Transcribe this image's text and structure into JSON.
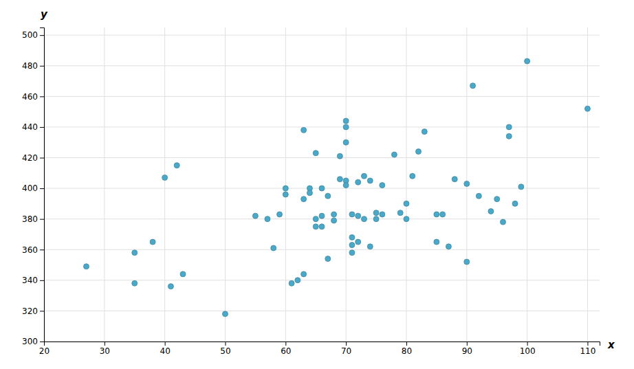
{
  "chart_data": {
    "type": "scatter",
    "xlabel": "x",
    "ylabel": "y",
    "x": [
      27,
      35,
      35,
      38,
      40,
      41,
      42,
      43,
      50,
      55,
      57,
      58,
      59,
      60,
      60,
      61,
      62,
      63,
      63,
      63,
      64,
      64,
      65,
      65,
      65,
      66,
      66,
      66,
      67,
      67,
      68,
      68,
      69,
      69,
      70,
      70,
      70,
      70,
      70,
      71,
      71,
      71,
      71,
      72,
      72,
      72,
      73,
      73,
      74,
      74,
      75,
      75,
      76,
      76,
      78,
      79,
      80,
      80,
      81,
      82,
      83,
      85,
      85,
      86,
      87,
      88,
      90,
      90,
      91,
      92,
      94,
      95,
      96,
      97,
      97,
      98,
      99,
      100,
      110
    ],
    "values": [
      349,
      358,
      338,
      365,
      407,
      336,
      415,
      344,
      318,
      382,
      380,
      361,
      383,
      400,
      396,
      338,
      340,
      344,
      438,
      393,
      400,
      397,
      375,
      380,
      423,
      382,
      375,
      400,
      354,
      395,
      383,
      379,
      421,
      406,
      444,
      440,
      430,
      405,
      402,
      363,
      358,
      368,
      383,
      382,
      365,
      404,
      408,
      380,
      362,
      405,
      384,
      380,
      402,
      383,
      422,
      384,
      380,
      390,
      408,
      424,
      437,
      383,
      365,
      383,
      362,
      406,
      352,
      403,
      467,
      395,
      385,
      393,
      378,
      440,
      434,
      390,
      401,
      483,
      452
    ],
    "color": "#4aa8c8",
    "xlim": [
      20,
      112
    ],
    "ylim": [
      300,
      505
    ],
    "xticks": [
      20,
      30,
      40,
      50,
      60,
      70,
      80,
      90,
      100,
      110
    ],
    "yticks": [
      300,
      320,
      340,
      360,
      380,
      400,
      420,
      440,
      460,
      480,
      500
    ],
    "grid": true
  }
}
